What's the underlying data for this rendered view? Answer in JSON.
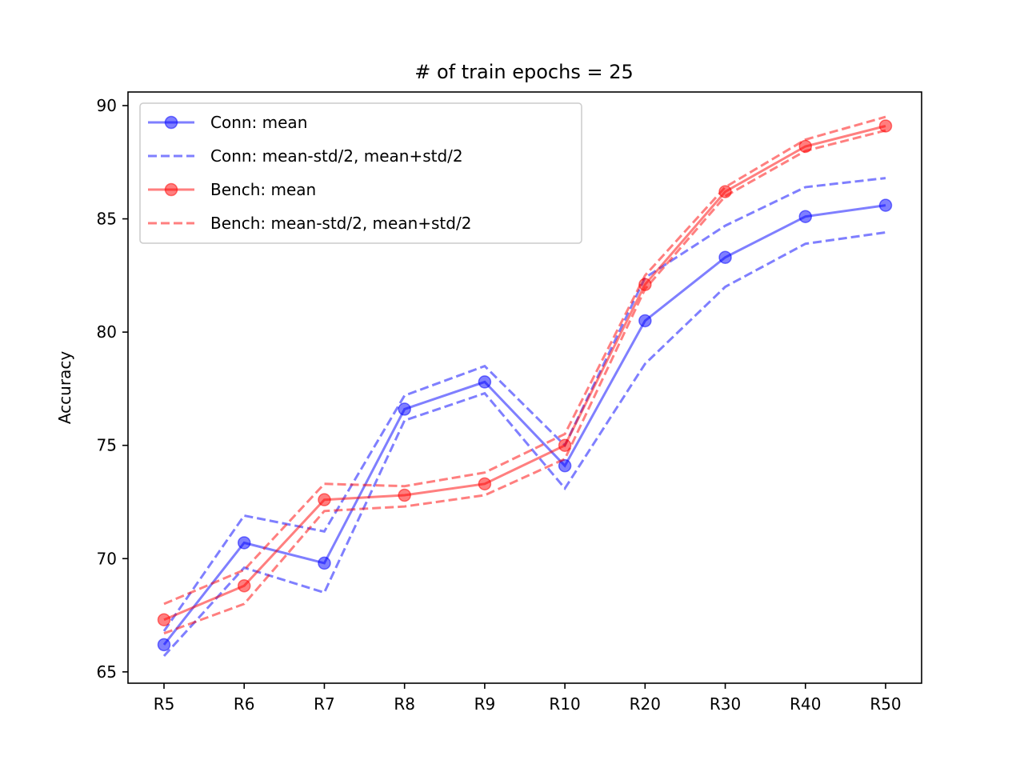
{
  "chart_data": {
    "type": "line",
    "title": "# of train epochs = 25",
    "xlabel": "",
    "ylabel": "Accuracy",
    "categories": [
      "R5",
      "R6",
      "R7",
      "R8",
      "R9",
      "R10",
      "R20",
      "R30",
      "R40",
      "R50"
    ],
    "ylim": [
      64.5,
      90.6
    ],
    "yticks": [
      65,
      70,
      75,
      80,
      85,
      90
    ],
    "grid": false,
    "legend_position": "upper-left",
    "series": [
      {
        "name": "Conn: mean",
        "style": "solid-marker",
        "color": "#0000ff",
        "values": [
          66.2,
          70.7,
          69.8,
          76.6,
          77.8,
          74.1,
          80.5,
          83.3,
          85.1,
          85.6
        ]
      },
      {
        "name": "Conn: mean-std/2, mean+std/2",
        "style": "dashed",
        "color": "#0000ff",
        "lower": [
          65.7,
          69.6,
          68.5,
          76.1,
          77.3,
          73.1,
          78.6,
          82.0,
          83.9,
          84.4
        ],
        "upper": [
          66.8,
          71.9,
          71.2,
          77.2,
          78.5,
          75.0,
          82.4,
          84.7,
          86.4,
          86.8
        ]
      },
      {
        "name": "Bench: mean",
        "style": "solid-marker",
        "color": "#ff0000",
        "values": [
          67.3,
          68.8,
          72.6,
          72.8,
          73.3,
          75.0,
          82.1,
          86.2,
          88.2,
          89.1
        ]
      },
      {
        "name": "Bench: mean-std/2, mean+std/2",
        "style": "dashed",
        "color": "#ff0000",
        "lower": [
          66.7,
          68.0,
          72.1,
          72.3,
          72.8,
          74.4,
          81.9,
          86.0,
          88.0,
          88.9
        ],
        "upper": [
          68.0,
          69.5,
          73.3,
          73.2,
          73.8,
          75.5,
          82.5,
          86.4,
          88.5,
          89.5
        ]
      }
    ]
  }
}
